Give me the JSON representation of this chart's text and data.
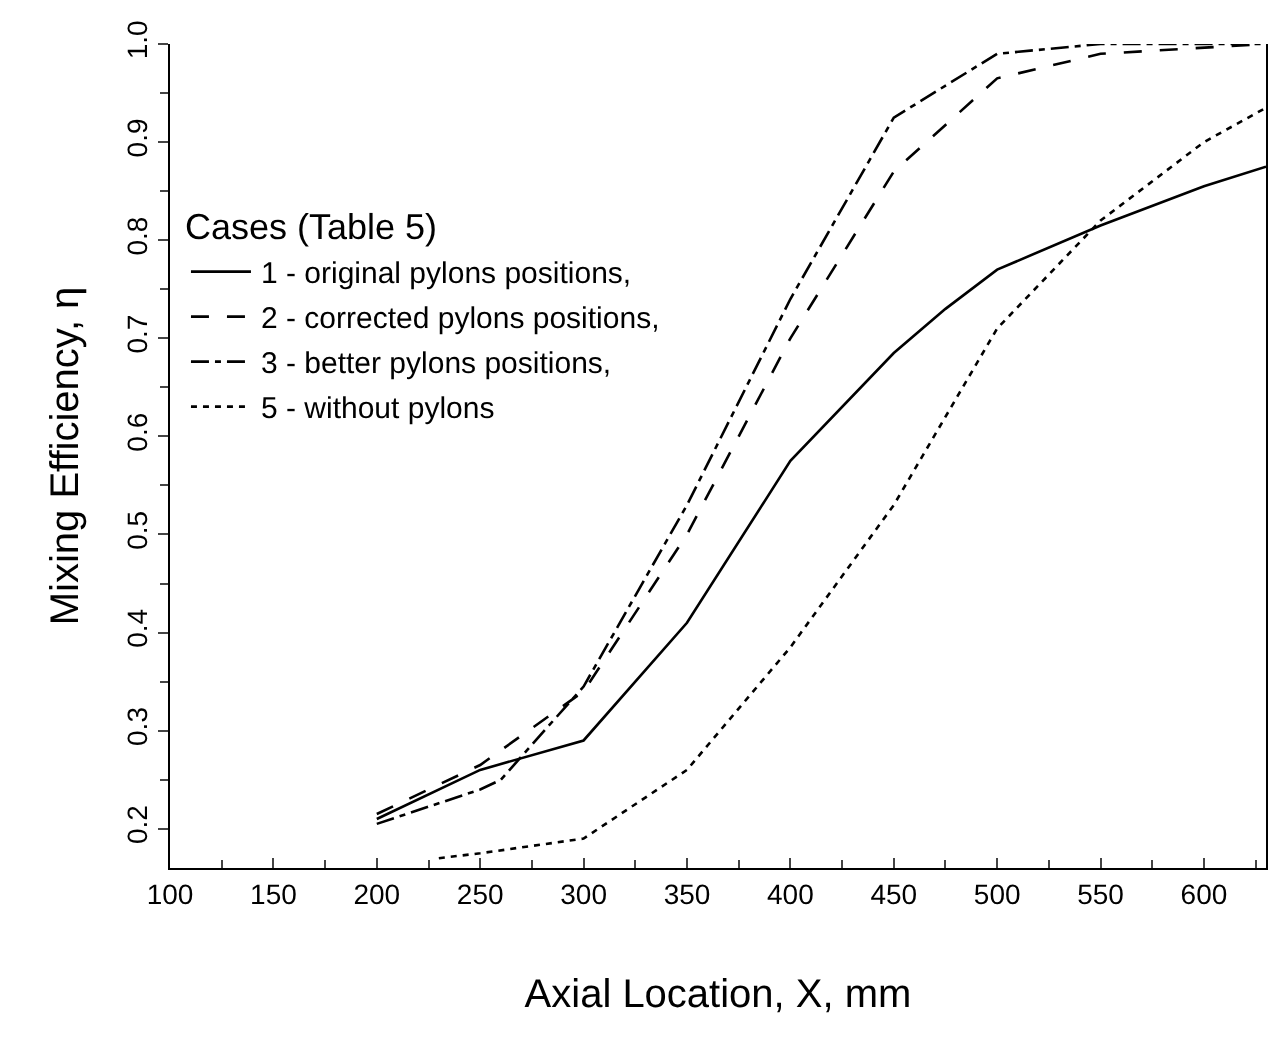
{
  "chart_data": {
    "type": "line",
    "xlabel": "Axial Location, X, mm",
    "ylabel": "Mixing Efficiency, η",
    "legend_title": "Cases (Table 5)",
    "legend": "top left",
    "grid": false,
    "marker": "none",
    "xlim": [
      100,
      630
    ],
    "xticks": [
      100,
      150,
      200,
      250,
      300,
      350,
      400,
      450,
      500,
      550,
      600
    ],
    "ylim": [
      0.16,
      1.0
    ],
    "yticks": [
      0.2,
      0.3,
      0.4,
      0.5,
      0.6,
      0.7,
      0.8,
      0.9,
      {
        "value": 1.0,
        "label": "1.0"
      }
    ],
    "series": [
      {
        "name": "1 - original pylons positions,",
        "color": "#000000",
        "line_style": "solid",
        "x": [
          200,
          250,
          300,
          350,
          400,
          450,
          475,
          500,
          550,
          600,
          630
        ],
        "values": [
          0.21,
          0.26,
          0.29,
          0.41,
          0.575,
          0.685,
          0.73,
          0.77,
          0.815,
          0.855,
          0.875
        ]
      },
      {
        "name": "2 - corrected pylons positions,",
        "color": "#000000",
        "line_style": "dashed",
        "x": [
          200,
          250,
          300,
          350,
          400,
          450,
          500,
          550,
          630
        ],
        "values": [
          0.215,
          0.265,
          0.34,
          0.5,
          0.7,
          0.87,
          0.965,
          0.99,
          1.0
        ]
      },
      {
        "name": "3 - better pylons positions,",
        "color": "#000000",
        "line_style": "dashdot",
        "x": [
          200,
          250,
          260,
          300,
          350,
          400,
          450,
          500,
          550,
          630
        ],
        "values": [
          0.205,
          0.24,
          0.25,
          0.345,
          0.53,
          0.74,
          0.925,
          0.99,
          1.0,
          1.0
        ]
      },
      {
        "name": "5 - without pylons",
        "color": "#000000",
        "line_style": "dotted",
        "x": [
          230,
          250,
          300,
          350,
          400,
          450,
          500,
          550,
          600,
          630
        ],
        "values": [
          0.17,
          0.175,
          0.19,
          0.26,
          0.385,
          0.53,
          0.71,
          0.82,
          0.9,
          0.935
        ]
      }
    ]
  }
}
